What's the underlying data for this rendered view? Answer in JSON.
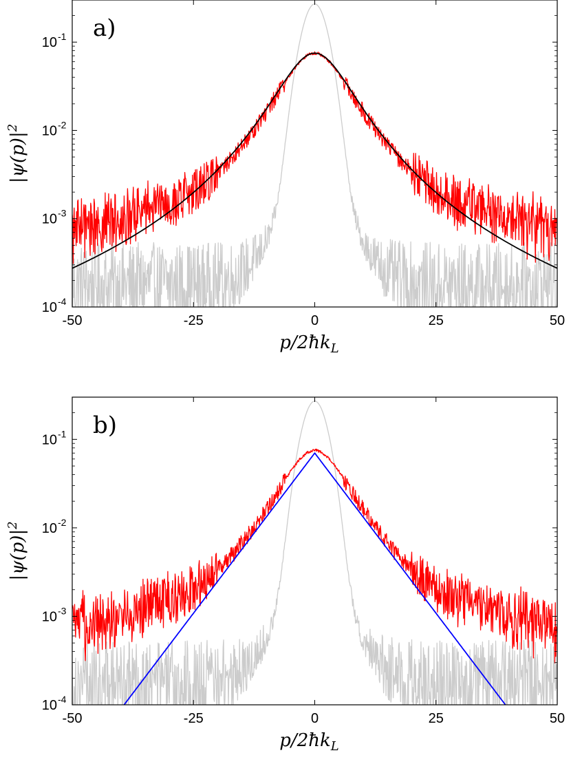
{
  "chart_data": [
    {
      "type": "line",
      "panel_label": "a)",
      "xlabel": "p/2ħk_L",
      "xlabel_parts": {
        "main": "p/2ħk",
        "sub": "L"
      },
      "ylabel": "|ψ(p)|²",
      "ylabel_parts": {
        "main": "|ψ(p)|",
        "sup": "2"
      },
      "xlim": [
        -50,
        50
      ],
      "ylim": [
        0.0001,
        0.3
      ],
      "yscale": "log",
      "xticks": [
        -50,
        -25,
        0,
        25,
        50
      ],
      "xtick_labels": [
        "-50",
        "-25",
        "0",
        "25",
        "50"
      ],
      "yticks": [
        0.0001,
        0.001,
        0.01,
        0.1
      ],
      "ytick_labels": [
        {
          "base": "10",
          "exp": "-4"
        },
        {
          "base": "10",
          "exp": "-3"
        },
        {
          "base": "10",
          "exp": "-2"
        },
        {
          "base": "10",
          "exp": "-1"
        }
      ],
      "grid": false,
      "series": [
        {
          "color": "#cccccc",
          "kind": "initial",
          "peak": 0.26,
          "width": 2.2,
          "noise_floor": 0.0002
        },
        {
          "color": "#ff0000",
          "kind": "measured",
          "peak": 0.075,
          "width": 7.5,
          "noise_floor": 0.0003
        },
        {
          "color": "#000000",
          "kind": "fit",
          "peak": 0.075,
          "width": 7.8
        }
      ]
    },
    {
      "type": "line",
      "panel_label": "b)",
      "xlabel": "p/2ħk_L",
      "xlabel_parts": {
        "main": "p/2ħk",
        "sub": "L"
      },
      "ylabel": "|ψ(p)|²",
      "ylabel_parts": {
        "main": "|ψ(p)|",
        "sup": "2"
      },
      "xlim": [
        -50,
        50
      ],
      "ylim": [
        0.0001,
        0.3
      ],
      "yscale": "log",
      "xticks": [
        -50,
        -25,
        0,
        25,
        50
      ],
      "xtick_labels": [
        "-50",
        "-25",
        "0",
        "25",
        "50"
      ],
      "yticks": [
        0.0001,
        0.001,
        0.01,
        0.1
      ],
      "ytick_labels": [
        {
          "base": "10",
          "exp": "-4"
        },
        {
          "base": "10",
          "exp": "-3"
        },
        {
          "base": "10",
          "exp": "-2"
        },
        {
          "base": "10",
          "exp": "-1"
        }
      ],
      "grid": false,
      "series": [
        {
          "color": "#cccccc",
          "kind": "initial",
          "peak": 0.26,
          "width": 2.2,
          "noise_floor": 0.0002
        },
        {
          "color": "#ff0000",
          "kind": "measured",
          "peak": 0.075,
          "width": 7.5,
          "noise_floor": 0.0003
        },
        {
          "color": "#0000ff",
          "kind": "exponential",
          "peak": 0.07,
          "decay_length": 6.0,
          "x_at_ymin": 39.3
        }
      ]
    }
  ]
}
